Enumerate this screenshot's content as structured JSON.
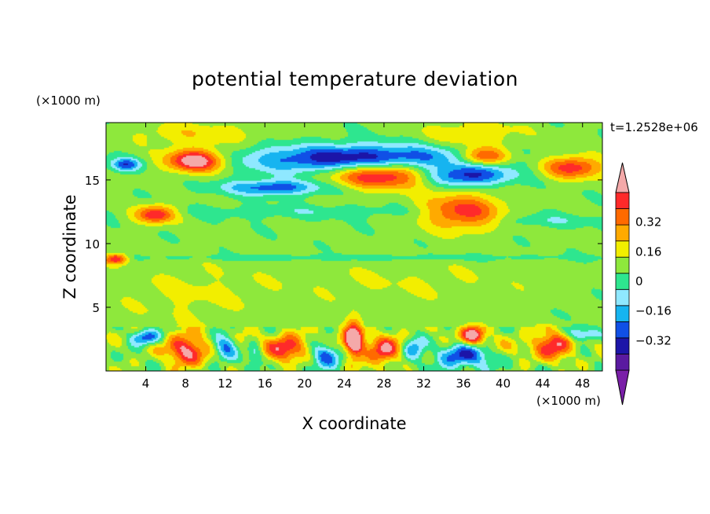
{
  "chart_data": {
    "type": "heatmap",
    "title": "potential temperature deviation",
    "xlabel": "X coordinate",
    "ylabel": "Z coordinate",
    "x_unit_label": "(×1000 m)",
    "y_unit_label": "(×1000 m)",
    "time_label": "t=1.2528e+06",
    "xlim": [
      0,
      50
    ],
    "ylim": [
      0,
      19.5
    ],
    "x_ticks": [
      4,
      8,
      12,
      16,
      20,
      24,
      28,
      32,
      36,
      40,
      44,
      48
    ],
    "x_tick_labels": [
      "4",
      "8",
      "12",
      "16",
      "20",
      "24",
      "28",
      "32",
      "36",
      "40",
      "44",
      "48"
    ],
    "y_ticks": [
      5,
      10,
      15
    ],
    "y_tick_labels": [
      "5",
      "10",
      "15"
    ],
    "colorbar": {
      "levels": [
        -0.48,
        -0.4,
        -0.32,
        -0.24,
        -0.16,
        -0.08,
        0,
        0.08,
        0.16,
        0.24,
        0.32,
        0.4,
        0.48
      ],
      "labeled_levels": [
        -0.32,
        -0.16,
        0,
        0.16,
        0.32
      ],
      "labels": [
        "0.32",
        "0.16",
        "0",
        "−0.16",
        "−0.32"
      ],
      "colors": [
        "#7a1fa8",
        "#5a1aa0",
        "#1c15a8",
        "#1050e6",
        "#16b4f0",
        "#8fe8ff",
        "#2ee68f",
        "#8ee83c",
        "#f2ee00",
        "#ffaa00",
        "#ff6a00",
        "#ff2a2a",
        "#f4a9a9"
      ],
      "extend": "both"
    },
    "features": [
      {
        "x": 9,
        "z": 16.5,
        "rx": 3,
        "rz": 0.9,
        "v": 0.5
      },
      {
        "x": 28,
        "z": 15.5,
        "rx": 5.5,
        "rz": 1.1,
        "v": 0.5
      },
      {
        "x": 38,
        "z": 16.8,
        "rx": 2.5,
        "rz": 0.7,
        "v": 0.4
      },
      {
        "x": 47,
        "z": 16,
        "rx": 3,
        "rz": 0.9,
        "v": 0.36
      },
      {
        "x": 26,
        "z": 16.6,
        "rx": 11,
        "rz": 1.1,
        "v": -0.48
      },
      {
        "x": 36,
        "z": 15.3,
        "rx": 4.5,
        "rz": 0.8,
        "v": -0.38
      },
      {
        "x": 17,
        "z": 14.4,
        "rx": 5,
        "rz": 0.6,
        "v": -0.32
      },
      {
        "x": 2,
        "z": 16.2,
        "rx": 1.5,
        "rz": 0.5,
        "v": -0.32
      },
      {
        "x": 9,
        "z": 18.6,
        "rx": 7,
        "rz": 1,
        "v": 0.12
      },
      {
        "x": 37,
        "z": 18.5,
        "rx": 5,
        "rz": 1.2,
        "v": 0.14
      },
      {
        "x": 5,
        "z": 12.3,
        "rx": 2,
        "rz": 0.7,
        "v": 0.4
      },
      {
        "x": 36,
        "z": 12.5,
        "rx": 4,
        "rz": 1.4,
        "v": 0.35
      },
      {
        "x": 20,
        "z": 12.5,
        "rx": 14,
        "rz": 0.5,
        "v": -0.08
      },
      {
        "x": 44,
        "z": 11.8,
        "rx": 6,
        "rz": 0.5,
        "v": -0.09
      },
      {
        "x": 25,
        "z": 8.9,
        "rx": 25,
        "rz": 0.25,
        "v": -0.09
      },
      {
        "x": 1,
        "z": 8.8,
        "rx": 1.2,
        "rz": 0.4,
        "v": 0.4
      },
      {
        "x": 30,
        "z": 7,
        "rx": 14,
        "rz": 2,
        "v": 0.06
      },
      {
        "x": 8,
        "z": 6,
        "rx": 8,
        "rz": 2.5,
        "v": 0.07
      },
      {
        "x": 25,
        "z": 2.1,
        "rx": 25,
        "rz": 1.1,
        "v": 0.1
      },
      {
        "x": 8,
        "z": 1.5,
        "rx": 1.8,
        "rz": 1.3,
        "v": 0.36
      },
      {
        "x": 12,
        "z": 2,
        "rx": 1.2,
        "rz": 1,
        "v": -0.32
      },
      {
        "x": 18,
        "z": 1.6,
        "rx": 1.8,
        "rz": 1.1,
        "v": 0.3
      },
      {
        "x": 22,
        "z": 1.2,
        "rx": 1.5,
        "rz": 0.9,
        "v": -0.36
      },
      {
        "x": 25,
        "z": 2.5,
        "rx": 0.9,
        "rz": 1.5,
        "v": 0.48
      },
      {
        "x": 28,
        "z": 1.5,
        "rx": 1.5,
        "rz": 1.2,
        "v": 0.3
      },
      {
        "x": 31,
        "z": 1.8,
        "rx": 1.2,
        "rz": 1,
        "v": -0.3
      },
      {
        "x": 36,
        "z": 1.3,
        "rx": 2.5,
        "rz": 1,
        "v": -0.4
      },
      {
        "x": 37,
        "z": 2.8,
        "rx": 1.2,
        "rz": 0.8,
        "v": 0.44
      },
      {
        "x": 45,
        "z": 2,
        "rx": 2,
        "rz": 1.1,
        "v": 0.32
      },
      {
        "x": 4,
        "z": 2.6,
        "rx": 1.5,
        "rz": 0.6,
        "v": -0.36
      },
      {
        "x": 48,
        "z": 2.9,
        "rx": 1.6,
        "rz": 0.5,
        "v": -0.28
      },
      {
        "x": 15,
        "z": 1.2,
        "rx": 0.8,
        "rz": 1.1,
        "v": -0.2
      }
    ]
  }
}
